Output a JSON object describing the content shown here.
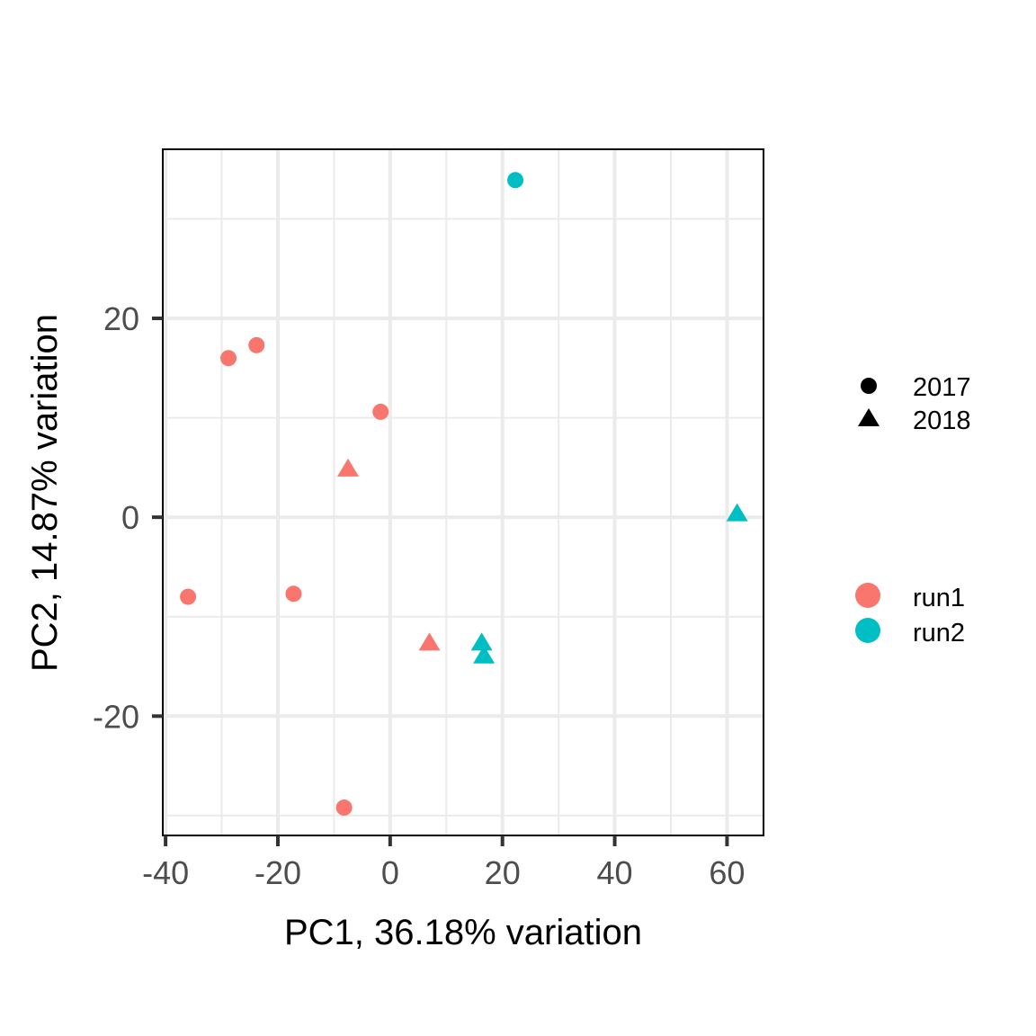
{
  "chart_data": {
    "type": "scatter",
    "xlabel": "PC1, 36.18% variation",
    "ylabel": "PC2, 14.87% variation",
    "xlim": [
      -40.5,
      66.5
    ],
    "ylim": [
      -32,
      37
    ],
    "x_ticks": [
      -40,
      -20,
      0,
      20,
      40,
      60
    ],
    "y_ticks": [
      -20,
      0,
      20
    ],
    "x_tick_labels": [
      "-40",
      "-20",
      "0",
      "20",
      "40",
      "60"
    ],
    "y_tick_labels": [
      "-20",
      "0",
      "20"
    ],
    "grid": true,
    "legend_placement": "right",
    "shape_legend": {
      "entries": [
        {
          "label": "2017",
          "shape": "circle"
        },
        {
          "label": "2018",
          "shape": "triangle"
        }
      ]
    },
    "color_legend": {
      "entries": [
        {
          "label": "run1",
          "color": "#F8766D"
        },
        {
          "label": "run2",
          "color": "#00BFC4"
        }
      ]
    },
    "points": [
      {
        "x": -36.0,
        "y": -8.0,
        "run": "run1",
        "year": "2017"
      },
      {
        "x": -28.8,
        "y": 16.0,
        "run": "run1",
        "year": "2017"
      },
      {
        "x": -23.8,
        "y": 17.3,
        "run": "run1",
        "year": "2017"
      },
      {
        "x": -17.2,
        "y": -7.7,
        "run": "run1",
        "year": "2017"
      },
      {
        "x": -8.2,
        "y": -29.2,
        "run": "run1",
        "year": "2017"
      },
      {
        "x": -1.7,
        "y": 10.6,
        "run": "run1",
        "year": "2017"
      },
      {
        "x": -7.5,
        "y": 5.0,
        "run": "run1",
        "year": "2018"
      },
      {
        "x": 7.0,
        "y": -12.5,
        "run": "run1",
        "year": "2018"
      },
      {
        "x": 22.3,
        "y": 33.9,
        "run": "run2",
        "year": "2017"
      },
      {
        "x": 16.3,
        "y": -12.5,
        "run": "run2",
        "year": "2018"
      },
      {
        "x": 16.7,
        "y": -13.8,
        "run": "run2",
        "year": "2018"
      },
      {
        "x": 61.8,
        "y": 0.5,
        "run": "run2",
        "year": "2018"
      }
    ]
  }
}
